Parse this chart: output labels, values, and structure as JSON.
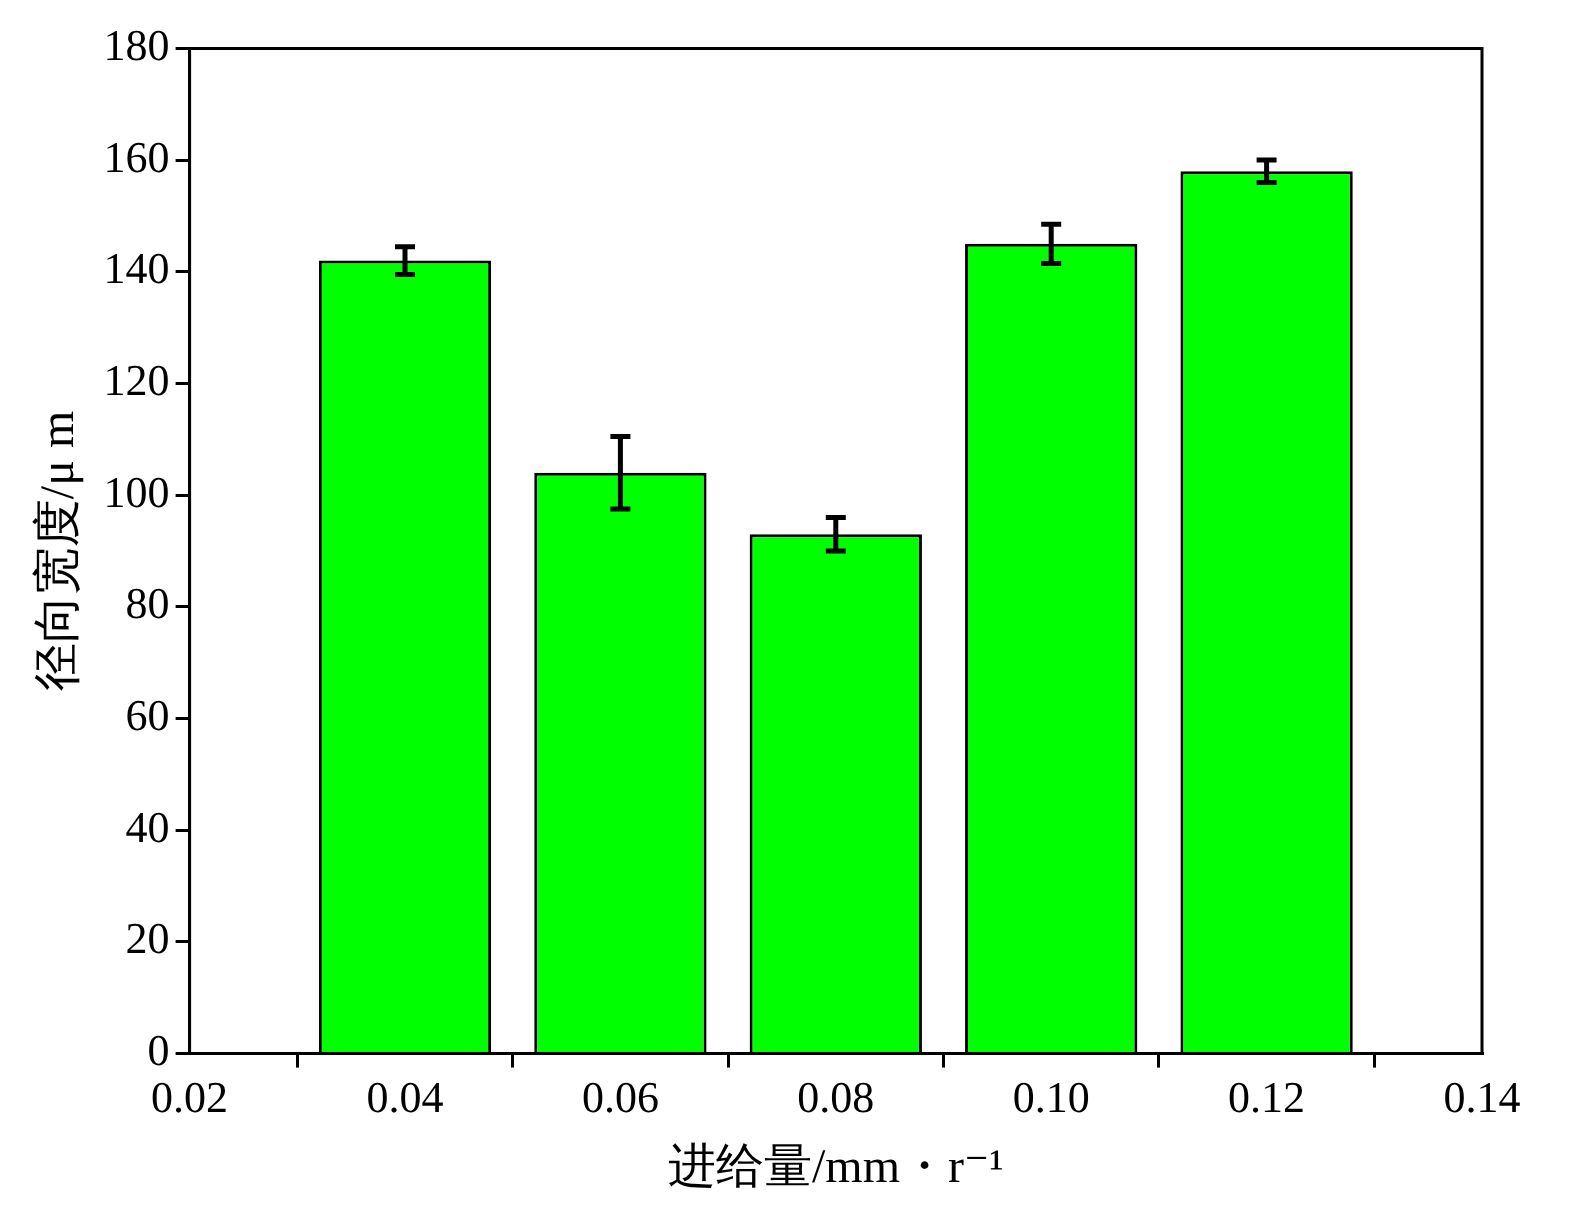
{
  "chart_data": {
    "type": "bar",
    "xlabel": "进给量/mm・r⁻¹",
    "ylabel": "径向宽度/μ m",
    "x": [
      0.04,
      0.06,
      0.08,
      0.1,
      0.12
    ],
    "values": [
      142,
      104,
      93,
      145,
      158
    ],
    "errors": [
      2.5,
      6.5,
      3,
      3.5,
      2
    ],
    "color": "#00ff00",
    "xlim": [
      0.02,
      0.14
    ],
    "xticks": [
      0.02,
      0.04,
      0.06,
      0.08,
      {
        "value": 0.1,
        "label": "0.10"
      },
      0.12,
      0.14
    ],
    "ylim": [
      0,
      180
    ],
    "yticks": [
      0,
      20,
      40,
      60,
      80,
      100,
      120,
      140,
      160,
      180
    ]
  }
}
